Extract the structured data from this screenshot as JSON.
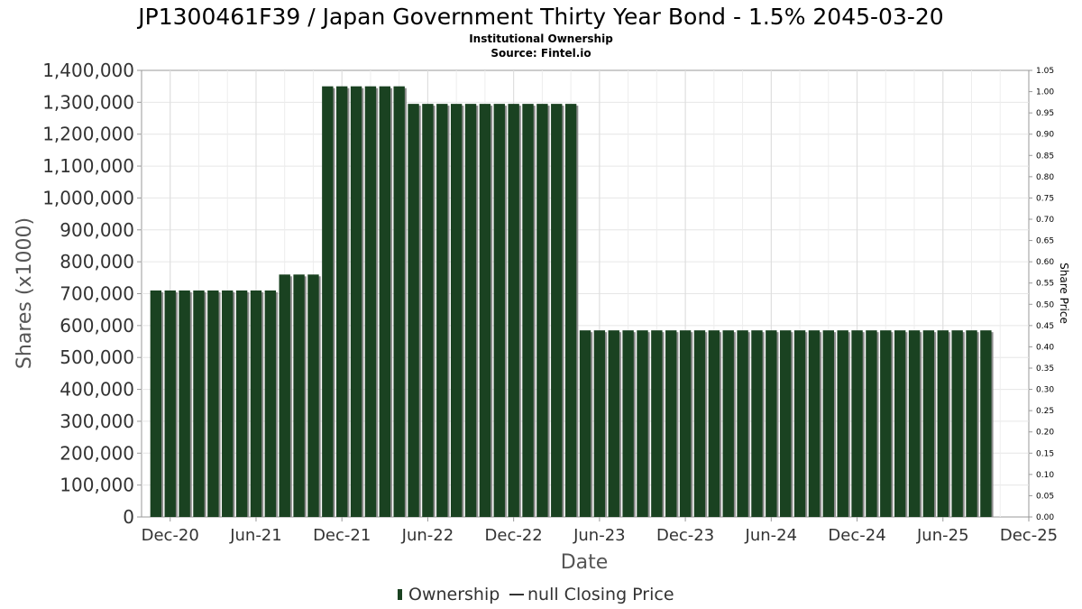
{
  "chart_data": {
    "type": "bar",
    "title": "JP1300461F39 / Japan Government Thirty Year Bond - 1.5% 2045-03-20",
    "subtitle_lines": [
      "Institutional Ownership",
      "Source: Fintel.io"
    ],
    "xlabel": "Date",
    "ylabel": "Shares (x1000)",
    "y2label": "Share Price",
    "ylim": [
      0,
      1400000
    ],
    "y2lim": [
      0,
      1.05
    ],
    "x_start": "2020-10",
    "x_end": "2025-12",
    "y_ticks": [
      "0",
      "100,000",
      "200,000",
      "300,000",
      "400,000",
      "500,000",
      "600,000",
      "700,000",
      "800,000",
      "900,000",
      "1,000,000",
      "1,100,000",
      "1,200,000",
      "1,300,000",
      "1,400,000"
    ],
    "y2_ticks": [
      "0.00",
      "0.05",
      "0.10",
      "0.15",
      "0.20",
      "0.25",
      "0.30",
      "0.35",
      "0.40",
      "0.45",
      "0.50",
      "0.55",
      "0.60",
      "0.65",
      "0.70",
      "0.75",
      "0.80",
      "0.85",
      "0.90",
      "0.95",
      "1.00",
      "1.05"
    ],
    "x_ticks": [
      {
        "date": "2020-12",
        "label": "Dec-20"
      },
      {
        "date": "2021-06",
        "label": "Jun-21"
      },
      {
        "date": "2021-12",
        "label": "Dec-21"
      },
      {
        "date": "2022-06",
        "label": "Jun-22"
      },
      {
        "date": "2022-12",
        "label": "Dec-22"
      },
      {
        "date": "2023-06",
        "label": "Jun-23"
      },
      {
        "date": "2023-12",
        "label": "Dec-23"
      },
      {
        "date": "2024-06",
        "label": "Jun-24"
      },
      {
        "date": "2024-12",
        "label": "Dec-24"
      },
      {
        "date": "2025-06",
        "label": "Jun-25"
      },
      {
        "date": "2025-12",
        "label": "Dec-25"
      }
    ],
    "series": [
      {
        "name": "Ownership",
        "color": "#1a4221",
        "x": [
          "2020-11",
          "2020-12",
          "2021-01",
          "2021-02",
          "2021-03",
          "2021-04",
          "2021-05",
          "2021-06",
          "2021-07",
          "2021-08",
          "2021-09",
          "2021-10",
          "2021-11",
          "2021-12",
          "2022-01",
          "2022-02",
          "2022-03",
          "2022-04",
          "2022-05",
          "2022-06",
          "2022-07",
          "2022-08",
          "2022-09",
          "2022-10",
          "2022-11",
          "2022-12",
          "2023-01",
          "2023-02",
          "2023-03",
          "2023-04",
          "2023-05",
          "2023-06",
          "2023-07",
          "2023-08",
          "2023-09",
          "2023-10",
          "2023-11",
          "2023-12",
          "2024-01",
          "2024-02",
          "2024-03",
          "2024-04",
          "2024-05",
          "2024-06",
          "2024-07",
          "2024-08",
          "2024-09",
          "2024-10",
          "2024-11",
          "2024-12",
          "2025-01",
          "2025-02",
          "2025-03",
          "2025-04",
          "2025-05",
          "2025-06",
          "2025-07",
          "2025-08",
          "2025-09"
        ],
        "values": [
          710000,
          710000,
          710000,
          710000,
          710000,
          710000,
          710000,
          710000,
          710000,
          760000,
          760000,
          760000,
          1350000,
          1350000,
          1350000,
          1350000,
          1350000,
          1350000,
          1295000,
          1295000,
          1295000,
          1295000,
          1295000,
          1295000,
          1295000,
          1295000,
          1295000,
          1295000,
          1295000,
          1295000,
          585000,
          585000,
          585000,
          585000,
          585000,
          585000,
          585000,
          585000,
          585000,
          585000,
          585000,
          585000,
          585000,
          585000,
          585000,
          585000,
          585000,
          585000,
          585000,
          585000,
          585000,
          585000,
          585000,
          585000,
          585000,
          585000,
          585000,
          585000,
          585000
        ]
      }
    ],
    "legend": {
      "placement": "bottom-center",
      "entries": [
        {
          "marker": "bar",
          "label": "Ownership"
        },
        {
          "marker": "line",
          "label": "null Closing Price"
        }
      ]
    },
    "grid": true
  }
}
